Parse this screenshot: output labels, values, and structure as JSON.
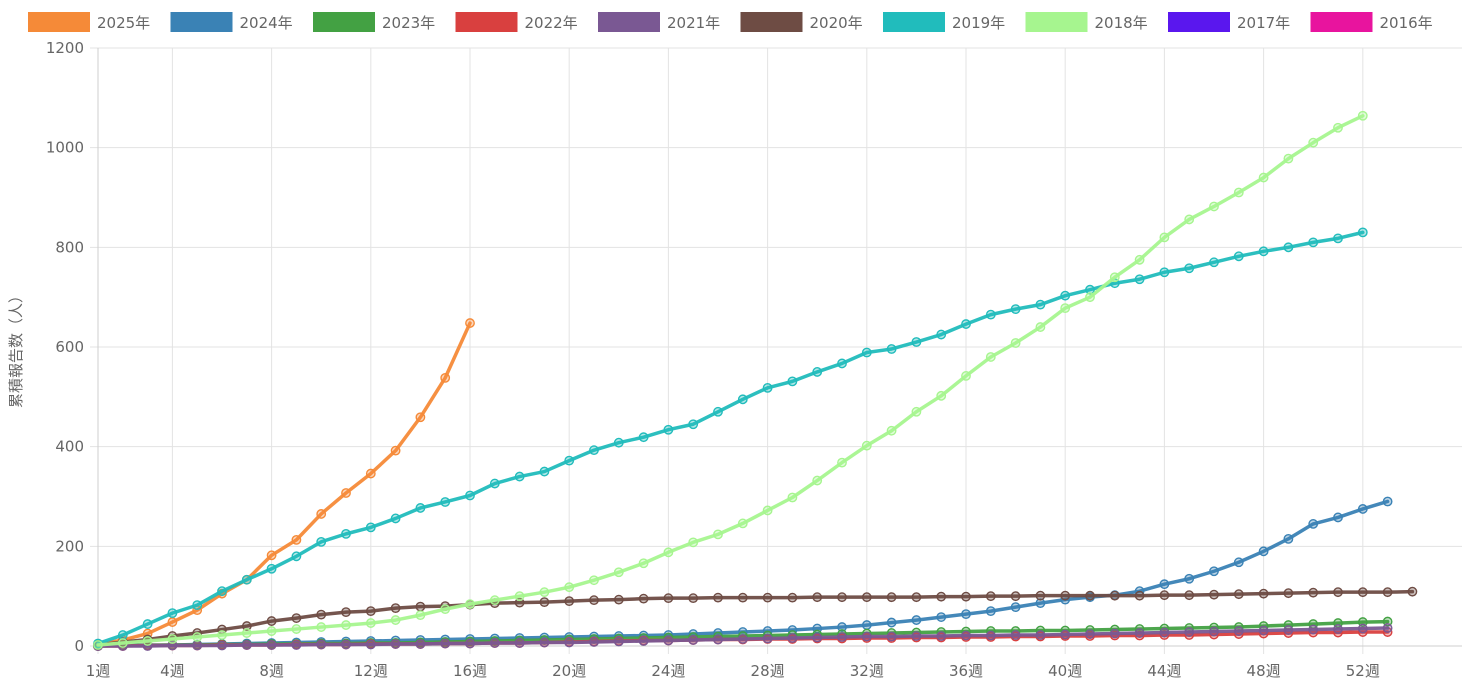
{
  "chart_data": {
    "type": "line",
    "ylabel": "累積報告数（人）",
    "xlabel": "",
    "ylim": [
      0,
      1200
    ],
    "y_ticks": [
      0,
      200,
      400,
      600,
      800,
      1000,
      1200
    ],
    "grid": true,
    "legend_position": "top",
    "x_tick_labels": [
      "1週",
      "4週",
      "8週",
      "12週",
      "16週",
      "20週",
      "24週",
      "28週",
      "32週",
      "36週",
      "40週",
      "44週",
      "48週",
      "52週"
    ],
    "x_tick_weeks": [
      1,
      4,
      8,
      12,
      16,
      20,
      24,
      28,
      32,
      36,
      40,
      44,
      48,
      52
    ],
    "x_range": [
      1,
      56
    ],
    "series": [
      {
        "name": "2025年",
        "color": "#f58a38",
        "values": [
          3,
          12,
          25,
          48,
          72,
          105,
          133,
          182,
          213,
          265,
          307,
          346,
          392,
          459,
          538,
          648
        ]
      },
      {
        "name": "2024年",
        "color": "#3a82b5",
        "values": [
          0,
          1,
          2,
          2,
          3,
          4,
          5,
          6,
          7,
          8,
          9,
          10,
          11,
          12,
          13,
          14,
          15,
          16,
          17,
          18,
          19,
          20,
          21,
          22,
          24,
          26,
          28,
          30,
          32,
          35,
          38,
          42,
          47,
          52,
          58,
          64,
          70,
          78,
          86,
          93,
          98,
          102,
          110,
          124,
          135,
          150,
          168,
          190,
          215,
          245,
          258,
          275,
          290
        ]
      },
      {
        "name": "2023年",
        "color": "#43a143",
        "values": [
          0,
          1,
          1,
          2,
          2,
          3,
          3,
          4,
          4,
          5,
          5,
          6,
          6,
          7,
          8,
          9,
          10,
          11,
          12,
          13,
          14,
          15,
          16,
          17,
          18,
          19,
          20,
          21,
          22,
          23,
          24,
          25,
          26,
          27,
          28,
          29,
          30,
          30,
          31,
          31,
          32,
          33,
          34,
          35,
          36,
          37,
          38,
          40,
          42,
          44,
          46,
          48,
          49
        ]
      },
      {
        "name": "2022年",
        "color": "#d9403f",
        "values": [
          0,
          0,
          1,
          1,
          1,
          2,
          2,
          2,
          3,
          3,
          3,
          4,
          4,
          4,
          5,
          5,
          6,
          6,
          7,
          8,
          9,
          10,
          11,
          11,
          12,
          13,
          13,
          14,
          14,
          15,
          15,
          16,
          16,
          17,
          17,
          18,
          18,
          19,
          19,
          20,
          20,
          21,
          21,
          22,
          22,
          23,
          24,
          25,
          26,
          27,
          27,
          28,
          28
        ]
      },
      {
        "name": "2021年",
        "color": "#7a5893",
        "values": [
          0,
          0,
          0,
          1,
          1,
          1,
          2,
          2,
          2,
          3,
          3,
          3,
          4,
          4,
          5,
          5,
          6,
          6,
          7,
          7,
          8,
          9,
          10,
          11,
          12,
          13,
          14,
          15,
          16,
          17,
          18,
          19,
          19,
          20,
          20,
          21,
          21,
          22,
          22,
          23,
          24,
          25,
          26,
          27,
          28,
          29,
          30,
          31,
          32,
          33,
          34,
          35,
          36
        ]
      },
      {
        "name": "2020年",
        "color": "#6e4c44",
        "values": [
          2,
          8,
          13,
          20,
          26,
          33,
          40,
          50,
          56,
          63,
          68,
          70,
          76,
          79,
          80,
          83,
          86,
          87,
          88,
          90,
          92,
          93,
          95,
          96,
          96,
          97,
          97,
          97,
          97,
          98,
          98,
          98,
          98,
          98,
          99,
          99,
          100,
          100,
          101,
          101,
          101,
          101,
          101,
          102,
          102,
          103,
          104,
          105,
          106,
          107,
          108,
          108,
          108,
          109
        ]
      },
      {
        "name": "2019年",
        "color": "#21bcbc",
        "values": [
          5,
          22,
          44,
          66,
          82,
          110,
          133,
          155,
          180,
          209,
          225,
          238,
          256,
          277,
          289,
          302,
          326,
          340,
          350,
          372,
          393,
          408,
          419,
          434,
          445,
          470,
          495,
          518,
          531,
          550,
          567,
          589,
          596,
          610,
          625,
          646,
          665,
          676,
          685,
          703,
          715,
          728,
          736,
          750,
          758,
          770,
          782,
          792,
          800,
          810,
          818,
          830
        ]
      },
      {
        "name": "2018年",
        "color": "#a6f58f",
        "values": [
          2,
          6,
          10,
          14,
          18,
          22,
          26,
          30,
          34,
          38,
          42,
          46,
          52,
          62,
          74,
          84,
          92,
          100,
          108,
          118,
          132,
          148,
          166,
          188,
          208,
          224,
          246,
          272,
          298,
          332,
          368,
          402,
          432,
          470,
          502,
          542,
          580,
          608,
          640,
          678,
          700,
          740,
          775,
          820,
          856,
          882,
          910,
          940,
          978,
          1010,
          1040,
          1064
        ]
      },
      {
        "name": "2017年",
        "color": "#5a17ee",
        "values": []
      },
      {
        "name": "2016年",
        "color": "#e8149e",
        "values": []
      }
    ]
  }
}
